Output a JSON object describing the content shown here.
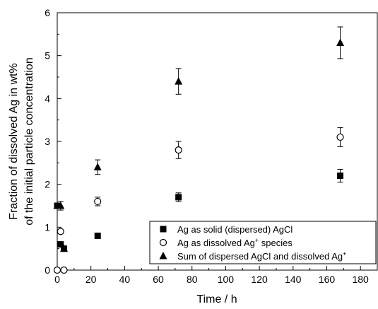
{
  "chart_data": {
    "type": "scatter",
    "title": "",
    "xlabel": "Time / h",
    "ylabel_lines": [
      "Fraction of dissolved Ag in wt%",
      "of the initial particle concentration"
    ],
    "xlim": [
      0,
      190
    ],
    "ylim": [
      0,
      6
    ],
    "x_ticks": [
      "0",
      "20",
      "40",
      "60",
      "80",
      "100",
      "120",
      "140",
      "160",
      "180"
    ],
    "y_ticks": [
      "0",
      "1",
      "2",
      "3",
      "4",
      "5",
      "6"
    ],
    "legend_position": "bottom-right",
    "series": [
      {
        "name": "Ag as solid (dispersed) AgCl",
        "legend_parts": [
          {
            "t": "Ag as solid (dispersed) AgCl"
          }
        ],
        "marker": "square",
        "points": [
          {
            "x": 0,
            "y": 1.5,
            "err": 0
          },
          {
            "x": 2,
            "y": 0.6,
            "err": 0
          },
          {
            "x": 4,
            "y": 0.5,
            "err": 0
          },
          {
            "x": 24,
            "y": 0.8,
            "err": 0
          },
          {
            "x": 72,
            "y": 1.7,
            "err": 0.1
          },
          {
            "x": 168,
            "y": 2.2,
            "err": 0.15
          }
        ]
      },
      {
        "name": "Ag as dissolved Ag+ species",
        "legend_parts": [
          {
            "t": "Ag as dissolved Ag"
          },
          {
            "t": "+",
            "sup": true
          },
          {
            "t": " species"
          }
        ],
        "marker": "circle",
        "points": [
          {
            "x": 0,
            "y": 0,
            "err": 0
          },
          {
            "x": 2,
            "y": 0.9,
            "err": 0
          },
          {
            "x": 4,
            "y": 0,
            "err": 0
          },
          {
            "x": 24,
            "y": 1.6,
            "err": 0.1
          },
          {
            "x": 72,
            "y": 2.8,
            "err": 0.2
          },
          {
            "x": 168,
            "y": 3.1,
            "err": 0.22
          }
        ]
      },
      {
        "name": "Sum of dispersed AgCl and dissolved Ag+",
        "legend_parts": [
          {
            "t": "Sum of dispersed AgCl and dissolved Ag"
          },
          {
            "t": "+",
            "sup": true
          }
        ],
        "marker": "triangle",
        "points": [
          {
            "x": 0,
            "y": 1.5,
            "err": 0
          },
          {
            "x": 2,
            "y": 1.5,
            "err": 0.1
          },
          {
            "x": 4,
            "y": 0.5,
            "err": 0
          },
          {
            "x": 24,
            "y": 2.4,
            "err": 0.17
          },
          {
            "x": 72,
            "y": 4.4,
            "err": 0.3
          },
          {
            "x": 168,
            "y": 5.3,
            "err": 0.37
          }
        ]
      }
    ]
  }
}
